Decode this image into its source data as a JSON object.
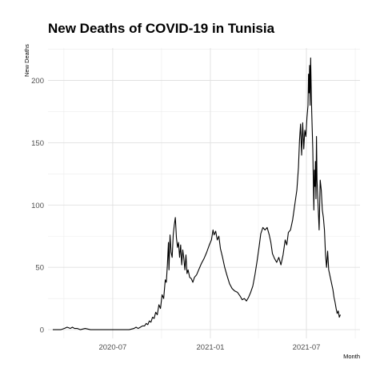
{
  "chart_data": {
    "type": "line",
    "title": "New Deaths of COVID-19 in Tunisia",
    "xlabel": "Month",
    "ylabel": "New Deaths",
    "x_tick_labels": [
      "2020-07",
      "2021-01",
      "2021-07"
    ],
    "x_ticks": [
      "2020-07-01",
      "2021-01-01",
      "2021-07-01"
    ],
    "y_ticks": [
      0,
      50,
      100,
      150,
      200
    ],
    "xlim": [
      "2020-03-01",
      "2021-10-10"
    ],
    "ylim": [
      -7,
      226
    ],
    "grid": true,
    "color": "#000000",
    "series": [
      {
        "points": [
          [
            "2020-03-10",
            0
          ],
          [
            "2020-03-25",
            0
          ],
          [
            "2020-04-01",
            1
          ],
          [
            "2020-04-06",
            2
          ],
          [
            "2020-04-12",
            1
          ],
          [
            "2020-04-16",
            2
          ],
          [
            "2020-04-20",
            1
          ],
          [
            "2020-04-25",
            1
          ],
          [
            "2020-05-01",
            0
          ],
          [
            "2020-05-10",
            1
          ],
          [
            "2020-05-20",
            0
          ],
          [
            "2020-06-01",
            0
          ],
          [
            "2020-06-15",
            0
          ],
          [
            "2020-07-01",
            0
          ],
          [
            "2020-07-15",
            0
          ],
          [
            "2020-08-01",
            0
          ],
          [
            "2020-08-10",
            1
          ],
          [
            "2020-08-14",
            2
          ],
          [
            "2020-08-18",
            1
          ],
          [
            "2020-08-22",
            2
          ],
          [
            "2020-08-26",
            3
          ],
          [
            "2020-08-30",
            3
          ],
          [
            "2020-09-02",
            5
          ],
          [
            "2020-09-05",
            4
          ],
          [
            "2020-09-08",
            7
          ],
          [
            "2020-09-11",
            6
          ],
          [
            "2020-09-14",
            10
          ],
          [
            "2020-09-17",
            9
          ],
          [
            "2020-09-20",
            14
          ],
          [
            "2020-09-23",
            12
          ],
          [
            "2020-09-26",
            20
          ],
          [
            "2020-09-29",
            17
          ],
          [
            "2020-10-02",
            28
          ],
          [
            "2020-10-05",
            25
          ],
          [
            "2020-10-08",
            40
          ],
          [
            "2020-10-10",
            38
          ],
          [
            "2020-10-12",
            52
          ],
          [
            "2020-10-14",
            70
          ],
          [
            "2020-10-15",
            48
          ],
          [
            "2020-10-17",
            76
          ],
          [
            "2020-10-19",
            62
          ],
          [
            "2020-10-21",
            58
          ],
          [
            "2020-10-23",
            76
          ],
          [
            "2020-10-25",
            84
          ],
          [
            "2020-10-27",
            90
          ],
          [
            "2020-10-29",
            74
          ],
          [
            "2020-10-31",
            66
          ],
          [
            "2020-11-02",
            70
          ],
          [
            "2020-11-04",
            58
          ],
          [
            "2020-11-06",
            68
          ],
          [
            "2020-11-08",
            52
          ],
          [
            "2020-11-10",
            64
          ],
          [
            "2020-11-12",
            57
          ],
          [
            "2020-11-14",
            48
          ],
          [
            "2020-11-16",
            60
          ],
          [
            "2020-11-18",
            45
          ],
          [
            "2020-11-20",
            48
          ],
          [
            "2020-11-23",
            42
          ],
          [
            "2020-11-26",
            41
          ],
          [
            "2020-11-29",
            38
          ],
          [
            "2020-12-02",
            42
          ],
          [
            "2020-12-06",
            44
          ],
          [
            "2020-12-10",
            48
          ],
          [
            "2020-12-15",
            53
          ],
          [
            "2020-12-20",
            57
          ],
          [
            "2020-12-25",
            62
          ],
          [
            "2020-12-30",
            68
          ],
          [
            "2021-01-03",
            72
          ],
          [
            "2021-01-06",
            80
          ],
          [
            "2021-01-08",
            76
          ],
          [
            "2021-01-11",
            79
          ],
          [
            "2021-01-14",
            72
          ],
          [
            "2021-01-17",
            75
          ],
          [
            "2021-01-20",
            65
          ],
          [
            "2021-01-24",
            58
          ],
          [
            "2021-01-28",
            50
          ],
          [
            "2021-02-01",
            44
          ],
          [
            "2021-02-06",
            37
          ],
          [
            "2021-02-11",
            33
          ],
          [
            "2021-02-16",
            31
          ],
          [
            "2021-02-21",
            30
          ],
          [
            "2021-02-26",
            27
          ],
          [
            "2021-03-02",
            24
          ],
          [
            "2021-03-06",
            25
          ],
          [
            "2021-03-10",
            23
          ],
          [
            "2021-03-14",
            26
          ],
          [
            "2021-03-18",
            30
          ],
          [
            "2021-03-22",
            35
          ],
          [
            "2021-03-26",
            44
          ],
          [
            "2021-03-30",
            55
          ],
          [
            "2021-04-03",
            67
          ],
          [
            "2021-04-06",
            77
          ],
          [
            "2021-04-10",
            82
          ],
          [
            "2021-04-14",
            80
          ],
          [
            "2021-04-18",
            82
          ],
          [
            "2021-04-22",
            76
          ],
          [
            "2021-04-25",
            70
          ],
          [
            "2021-04-28",
            61
          ],
          [
            "2021-05-02",
            57
          ],
          [
            "2021-05-06",
            54
          ],
          [
            "2021-05-10",
            58
          ],
          [
            "2021-05-14",
            52
          ],
          [
            "2021-05-18",
            60
          ],
          [
            "2021-05-22",
            72
          ],
          [
            "2021-05-25",
            68
          ],
          [
            "2021-05-28",
            78
          ],
          [
            "2021-06-01",
            80
          ],
          [
            "2021-06-05",
            88
          ],
          [
            "2021-06-09",
            100
          ],
          [
            "2021-06-13",
            112
          ],
          [
            "2021-06-16",
            130
          ],
          [
            "2021-06-18",
            152
          ],
          [
            "2021-06-20",
            165
          ],
          [
            "2021-06-22",
            140
          ],
          [
            "2021-06-24",
            166
          ],
          [
            "2021-06-26",
            145
          ],
          [
            "2021-06-28",
            160
          ],
          [
            "2021-06-30",
            155
          ],
          [
            "2021-07-02",
            170
          ],
          [
            "2021-07-04",
            180
          ],
          [
            "2021-07-05",
            205
          ],
          [
            "2021-07-06",
            190
          ],
          [
            "2021-07-07",
            212
          ],
          [
            "2021-07-08",
            180
          ],
          [
            "2021-07-09",
            218
          ],
          [
            "2021-07-10",
            195
          ],
          [
            "2021-07-11",
            175
          ],
          [
            "2021-07-12",
            160
          ],
          [
            "2021-07-13",
            145
          ],
          [
            "2021-07-14",
            120
          ],
          [
            "2021-07-15",
            96
          ],
          [
            "2021-07-16",
            128
          ],
          [
            "2021-07-17",
            115
          ],
          [
            "2021-07-18",
            135
          ],
          [
            "2021-07-19",
            105
          ],
          [
            "2021-07-20",
            155
          ],
          [
            "2021-07-21",
            120
          ],
          [
            "2021-07-23",
            100
          ],
          [
            "2021-07-25",
            80
          ],
          [
            "2021-07-27",
            120
          ],
          [
            "2021-07-29",
            112
          ],
          [
            "2021-07-31",
            96
          ],
          [
            "2021-08-02",
            90
          ],
          [
            "2021-08-04",
            80
          ],
          [
            "2021-08-06",
            60
          ],
          [
            "2021-08-08",
            50
          ],
          [
            "2021-08-10",
            63
          ],
          [
            "2021-08-12",
            48
          ],
          [
            "2021-08-14",
            44
          ],
          [
            "2021-08-16",
            40
          ],
          [
            "2021-08-18",
            36
          ],
          [
            "2021-08-20",
            32
          ],
          [
            "2021-08-22",
            26
          ],
          [
            "2021-08-24",
            22
          ],
          [
            "2021-08-26",
            17
          ],
          [
            "2021-08-28",
            13
          ],
          [
            "2021-08-30",
            15
          ],
          [
            "2021-09-01",
            10
          ],
          [
            "2021-09-03",
            12
          ]
        ]
      }
    ]
  }
}
